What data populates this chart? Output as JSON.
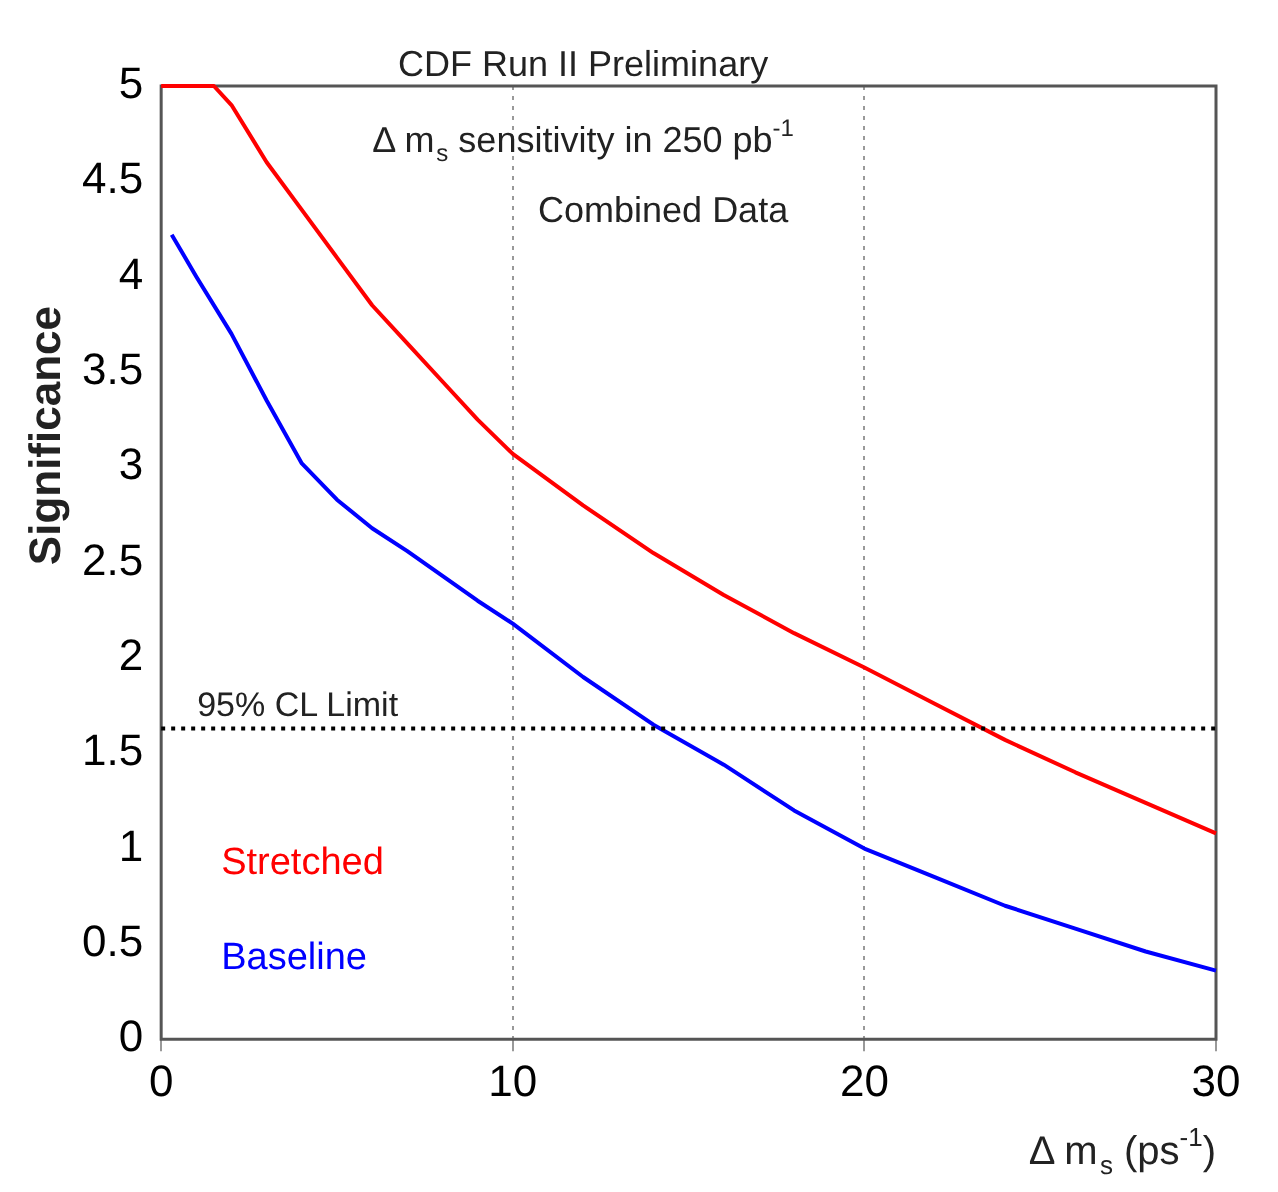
{
  "chart_data": {
    "type": "line",
    "title": "CDF Run II Preliminary",
    "subtitle": "Δ m$_{s}$ sensitivity in 250 pb$^{-1}$",
    "annotations": [
      "Combined Data"
    ],
    "xlabel": "Δ m$_{s}$ (ps$^{-1}$)",
    "ylabel": "Significance",
    "xlim": [
      0,
      30
    ],
    "xticks": [
      0,
      10,
      20,
      30
    ],
    "ylim": [
      0,
      5
    ],
    "yticks": [
      0,
      0.5,
      1,
      1.5,
      2,
      2.5,
      3,
      3.5,
      4,
      4.5,
      5
    ],
    "grid": "x",
    "legend": false,
    "marker": "none",
    "line_style": "solid",
    "ref_lines": [
      {
        "axis": "y",
        "value": 1.63,
        "label": "95% CL Limit",
        "color": "#000000",
        "line_style": "dotted"
      }
    ],
    "series": [
      {
        "name": "Stretched",
        "color": "#ff0000",
        "x": [
          0,
          1.5,
          2,
          3,
          4,
          5,
          6,
          7,
          8,
          9,
          10,
          12,
          14,
          16,
          18,
          20,
          22,
          24,
          26,
          28,
          30
        ],
        "values": [
          5,
          5,
          4.9,
          4.6,
          4.35,
          4.1,
          3.85,
          3.65,
          3.45,
          3.25,
          3.07,
          2.8,
          2.55,
          2.33,
          2.13,
          1.95,
          1.76,
          1.57,
          1.4,
          1.24,
          1.08
        ]
      },
      {
        "name": "Baseline",
        "color": "#0000ff",
        "x": [
          0.3,
          1,
          2,
          3,
          4,
          5,
          6,
          7,
          8,
          9,
          10,
          12,
          14,
          16,
          18,
          20,
          22,
          24,
          26,
          28,
          30
        ],
        "values": [
          4.22,
          4,
          3.7,
          3.35,
          3.02,
          2.83,
          2.68,
          2.56,
          2.43,
          2.3,
          2.18,
          1.9,
          1.65,
          1.44,
          1.2,
          1,
          0.85,
          0.7,
          0.58,
          0.46,
          0.36
        ]
      }
    ]
  }
}
